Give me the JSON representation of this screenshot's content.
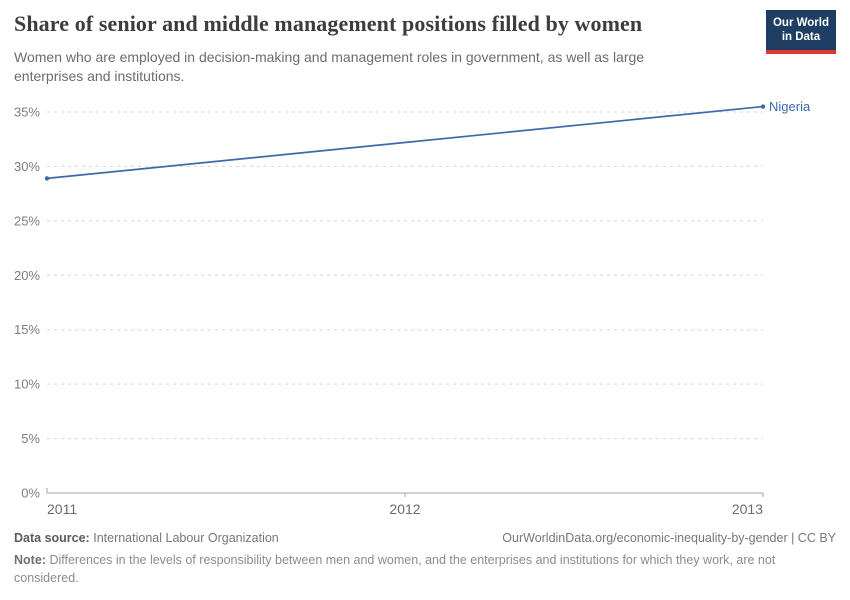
{
  "header": {
    "title": "Share of senior and middle management positions filled by women",
    "subtitle": "Women who are employed in decision-making and management roles in government, as well as large enterprises and institutions.",
    "logo": {
      "line1": "Our World",
      "line2": "in Data"
    }
  },
  "chart_data": {
    "type": "line",
    "title": "Share of senior and middle management positions filled by women",
    "x": [
      2011,
      2013
    ],
    "series": [
      {
        "name": "Nigeria",
        "values": [
          28.9,
          35.5
        ],
        "color": "#3b6aac"
      }
    ],
    "x_ticks": [
      "2011",
      "2012",
      "2013"
    ],
    "y_ticks": [
      0,
      5,
      10,
      15,
      20,
      25,
      30,
      35
    ],
    "y_tick_suffix": "%",
    "xlim": [
      2011,
      2013
    ],
    "ylim": [
      0,
      36.5
    ],
    "xlabel": "",
    "ylabel": "",
    "grid": "horizontal-dashed",
    "legend_position": "end-of-line-label"
  },
  "footer": {
    "datasource_label": "Data source:",
    "datasource_value": "International Labour Organization",
    "attribution": "OurWorldinData.org/economic-inequality-by-gender | CC BY",
    "note_label": "Note:",
    "note_text": "Differences in the levels of responsibility between men and women, and the enterprises and institutions for which they work, are not considered."
  },
  "colors": {
    "accent_line": "#3b6aac",
    "logo_bg": "#1d3d63",
    "logo_red": "#dc382d",
    "title_text": "#3d3d3d",
    "subtitle_text": "#6d6d6d",
    "gridline": "#d6d6d6",
    "axis_line": "#a3a3a3",
    "tick_label": "#7d7d7d"
  }
}
